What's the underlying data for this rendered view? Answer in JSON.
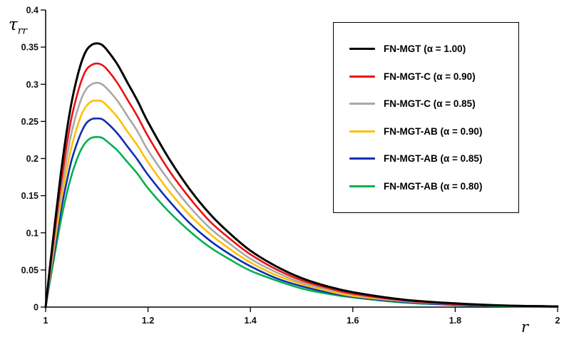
{
  "chart_data": {
    "type": "line",
    "title": "",
    "xlabel": "r",
    "ylabel": "τrr",
    "ylabel_main": "τ",
    "ylabel_sub": "rr",
    "xlim": [
      1,
      2
    ],
    "ylim": [
      0,
      0.4
    ],
    "grid": false,
    "legend_position": "upper right",
    "x_tick_values": [
      1,
      1.2,
      1.4,
      1.6,
      1.8,
      2
    ],
    "x_tick_labels": [
      "1",
      "1.2",
      "1.4",
      "1.6",
      "1.8",
      "2"
    ],
    "y_tick_values": [
      0,
      0.05,
      0.1,
      0.15,
      0.2,
      0.25,
      0.3,
      0.35,
      0.4
    ],
    "y_tick_labels": [
      "0",
      "0.05",
      "0.1",
      "0.15",
      "0.2",
      "0.25",
      "0.3",
      "0.35",
      "0.4"
    ],
    "x": [
      1.0,
      1.01,
      1.02,
      1.03,
      1.04,
      1.05,
      1.06,
      1.07,
      1.08,
      1.09,
      1.1,
      1.11,
      1.12,
      1.14,
      1.16,
      1.18,
      1.2,
      1.24,
      1.28,
      1.32,
      1.36,
      1.4,
      1.45,
      1.5,
      1.55,
      1.6,
      1.7,
      1.8,
      1.9,
      2.0
    ],
    "series": [
      {
        "name": "FN-MGT (α = 1.00)",
        "color": "#000000",
        "peak": 0.355,
        "values": [
          0,
          0.064,
          0.124,
          0.181,
          0.231,
          0.273,
          0.305,
          0.33,
          0.346,
          0.353,
          0.355,
          0.353,
          0.346,
          0.327,
          0.302,
          0.277,
          0.249,
          0.201,
          0.16,
          0.126,
          0.099,
          0.076,
          0.055,
          0.039,
          0.028,
          0.02,
          0.01,
          0.005,
          0.002,
          0.001
        ]
      },
      {
        "name": "FN-MGT-C (α = 0.90)",
        "color": "#ee1111",
        "peak": 0.328,
        "values": [
          0,
          0.059,
          0.115,
          0.167,
          0.213,
          0.253,
          0.282,
          0.305,
          0.32,
          0.326,
          0.328,
          0.326,
          0.32,
          0.302,
          0.279,
          0.256,
          0.23,
          0.185,
          0.148,
          0.116,
          0.092,
          0.071,
          0.051,
          0.036,
          0.026,
          0.018,
          0.009,
          0.004,
          0.002,
          0.001
        ]
      },
      {
        "name": "FN-MGT-C (α = 0.85)",
        "color": "#a8a8a8",
        "peak": 0.302,
        "values": [
          0,
          0.054,
          0.106,
          0.154,
          0.196,
          0.233,
          0.26,
          0.281,
          0.294,
          0.3,
          0.302,
          0.3,
          0.294,
          0.278,
          0.257,
          0.236,
          0.211,
          0.171,
          0.136,
          0.107,
          0.085,
          0.065,
          0.047,
          0.033,
          0.024,
          0.017,
          0.008,
          0.004,
          0.002,
          0.001
        ]
      },
      {
        "name": "FN-MGT-AB (α = 0.90)",
        "color": "#ffc000",
        "peak": 0.278,
        "values": [
          0,
          0.05,
          0.097,
          0.142,
          0.181,
          0.214,
          0.239,
          0.259,
          0.271,
          0.277,
          0.278,
          0.277,
          0.271,
          0.256,
          0.236,
          0.217,
          0.195,
          0.157,
          0.125,
          0.099,
          0.078,
          0.06,
          0.043,
          0.031,
          0.022,
          0.015,
          0.008,
          0.004,
          0.002,
          0.001
        ]
      },
      {
        "name": "FN-MGT-AB (α = 0.85)",
        "color": "#0f2db4",
        "peak": 0.254,
        "values": [
          0,
          0.046,
          0.089,
          0.13,
          0.165,
          0.196,
          0.218,
          0.236,
          0.248,
          0.253,
          0.254,
          0.253,
          0.248,
          0.234,
          0.216,
          0.198,
          0.178,
          0.144,
          0.114,
          0.09,
          0.071,
          0.055,
          0.039,
          0.028,
          0.02,
          0.014,
          0.007,
          0.003,
          0.002,
          0.001
        ]
      },
      {
        "name": "FN-MGT-AB (α = 0.80)",
        "color": "#00b050",
        "peak": 0.229,
        "values": [
          0,
          0.041,
          0.08,
          0.117,
          0.149,
          0.176,
          0.197,
          0.213,
          0.223,
          0.228,
          0.229,
          0.228,
          0.223,
          0.211,
          0.195,
          0.179,
          0.16,
          0.129,
          0.103,
          0.081,
          0.064,
          0.049,
          0.036,
          0.025,
          0.018,
          0.013,
          0.006,
          0.003,
          0.001,
          0.0
        ]
      }
    ]
  }
}
